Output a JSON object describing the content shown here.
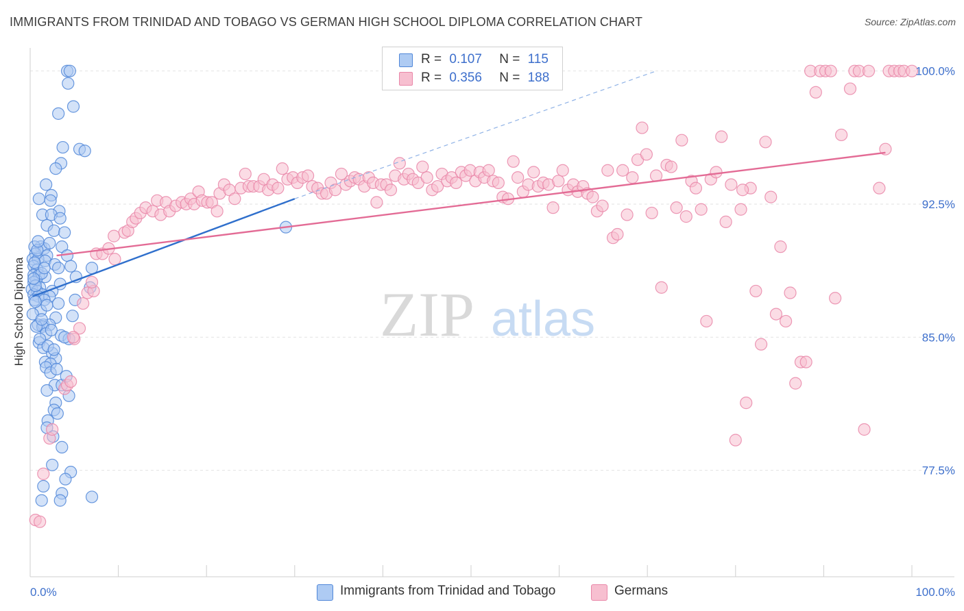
{
  "title": "IMMIGRANTS FROM TRINIDAD AND TOBAGO VS GERMAN HIGH SCHOOL DIPLOMA CORRELATION CHART",
  "source": "Source: ZipAtlas.com",
  "watermark": {
    "zip": "ZIP",
    "atlas": "atlas"
  },
  "legend": {
    "r_label": "R =",
    "n_label": "N =",
    "rows": [
      {
        "r": "0.107",
        "n": "115"
      },
      {
        "r": "0.356",
        "n": "188"
      }
    ]
  },
  "colors": {
    "blue_fill": "#aecbf3",
    "blue_stroke": "#4f86d8",
    "blue_line": "#2f6fcc",
    "pink_fill": "#f7bfd0",
    "pink_stroke": "#e986a8",
    "pink_line": "#e36b95",
    "grid": "#e2e2e2",
    "tick_text": "#3d6fcc"
  },
  "chart_data": {
    "type": "scatter",
    "title": "IMMIGRANTS FROM TRINIDAD AND TOBAGO VS GERMAN HIGH SCHOOL DIPLOMA CORRELATION CHART",
    "xlabel": "",
    "ylabel": "High School Diploma",
    "xlim": [
      0,
      100
    ],
    "ylim": [
      71.5,
      101.3
    ],
    "x_ticks": [
      "0.0%",
      "100.0%"
    ],
    "y_ticks": [
      {
        "value": 77.5,
        "label": "77.5%"
      },
      {
        "value": 85.0,
        "label": "85.0%"
      },
      {
        "value": 92.5,
        "label": "92.5%"
      },
      {
        "value": 100.0,
        "label": "100.0%"
      }
    ],
    "grid": true,
    "legend_position": "top-center",
    "series": [
      {
        "name": "Immigrants from Trinidad and Tobago",
        "color": "#4f86d8",
        "r": 0.107,
        "n": 115,
        "trend": {
          "x": [
            0.3,
            30.0
          ],
          "y": [
            87.3,
            92.8
          ]
        },
        "trend_extension": {
          "x": [
            30.0,
            71.0
          ],
          "y": [
            92.8,
            100.0
          ]
        },
        "points": [
          [
            4.2,
            100.0
          ],
          [
            4.5,
            100.0
          ],
          [
            4.3,
            99.3
          ],
          [
            4.9,
            98.0
          ],
          [
            3.2,
            97.6
          ],
          [
            3.7,
            95.7
          ],
          [
            5.6,
            95.6
          ],
          [
            6.2,
            95.5
          ],
          [
            3.5,
            94.8
          ],
          [
            2.9,
            94.5
          ],
          [
            1.8,
            93.6
          ],
          [
            2.4,
            93.0
          ],
          [
            1.0,
            92.8
          ],
          [
            2.3,
            92.7
          ],
          [
            3.3,
            92.1
          ],
          [
            1.4,
            91.9
          ],
          [
            2.4,
            91.9
          ],
          [
            3.4,
            91.7
          ],
          [
            1.9,
            91.3
          ],
          [
            2.7,
            91.0
          ],
          [
            3.9,
            90.9
          ],
          [
            1.2,
            90.1
          ],
          [
            3.6,
            90.1
          ],
          [
            0.5,
            90.1
          ],
          [
            1.6,
            90.0
          ],
          [
            0.6,
            89.7
          ],
          [
            1.9,
            89.6
          ],
          [
            4.2,
            89.6
          ],
          [
            0.3,
            89.4
          ],
          [
            0.9,
            89.4
          ],
          [
            1.7,
            89.3
          ],
          [
            2.8,
            89.1
          ],
          [
            0.4,
            89.0
          ],
          [
            4.6,
            89.0
          ],
          [
            3.2,
            88.9
          ],
          [
            0.8,
            88.8
          ],
          [
            7.0,
            88.9
          ],
          [
            0.4,
            88.5
          ],
          [
            1.0,
            88.5
          ],
          [
            1.7,
            88.4
          ],
          [
            5.2,
            88.4
          ],
          [
            0.7,
            88.2
          ],
          [
            0.4,
            88.1
          ],
          [
            3.4,
            88.0
          ],
          [
            1.1,
            87.8
          ],
          [
            0.2,
            87.7
          ],
          [
            0.8,
            87.6
          ],
          [
            2.5,
            87.6
          ],
          [
            6.8,
            87.8
          ],
          [
            0.4,
            87.4
          ],
          [
            1.4,
            87.4
          ],
          [
            0.9,
            87.3
          ],
          [
            2.2,
            87.3
          ],
          [
            0.5,
            87.1
          ],
          [
            1.6,
            87.1
          ],
          [
            3.2,
            86.9
          ],
          [
            1.2,
            86.5
          ],
          [
            2.9,
            86.1
          ],
          [
            4.8,
            86.2
          ],
          [
            0.9,
            85.7
          ],
          [
            1.5,
            85.7
          ],
          [
            2.2,
            85.7
          ],
          [
            1.4,
            85.6
          ],
          [
            0.7,
            85.6
          ],
          [
            1.8,
            85.2
          ],
          [
            3.5,
            85.1
          ],
          [
            4.4,
            84.9
          ],
          [
            1.0,
            84.7
          ],
          [
            1.5,
            84.4
          ],
          [
            2.5,
            84.1
          ],
          [
            2.9,
            83.8
          ],
          [
            1.7,
            83.6
          ],
          [
            2.3,
            83.5
          ],
          [
            1.8,
            83.3
          ],
          [
            2.3,
            83.0
          ],
          [
            2.8,
            82.3
          ],
          [
            3.6,
            82.3
          ],
          [
            4.4,
            81.7
          ],
          [
            2.9,
            81.3
          ],
          [
            2.7,
            80.9
          ],
          [
            2.0,
            80.3
          ],
          [
            1.9,
            79.9
          ],
          [
            3.6,
            78.8
          ],
          [
            2.5,
            77.8
          ],
          [
            4.6,
            77.4
          ],
          [
            3.6,
            76.2
          ],
          [
            1.3,
            75.8
          ],
          [
            3.4,
            75.8
          ],
          [
            7.0,
            76.0
          ],
          [
            0.5,
            89.2
          ],
          [
            1.3,
            88.6
          ],
          [
            0.6,
            87.9
          ],
          [
            1.9,
            86.8
          ],
          [
            0.3,
            86.3
          ],
          [
            2.4,
            85.4
          ],
          [
            29.0,
            91.2
          ],
          [
            5.1,
            87.1
          ],
          [
            0.8,
            89.9
          ],
          [
            1.6,
            88.9
          ],
          [
            0.4,
            88.3
          ],
          [
            0.6,
            87.0
          ],
          [
            1.3,
            86.0
          ],
          [
            3.9,
            85.0
          ],
          [
            1.1,
            84.9
          ],
          [
            2.0,
            84.5
          ],
          [
            2.7,
            84.3
          ],
          [
            3.0,
            83.2
          ],
          [
            4.1,
            82.8
          ],
          [
            1.9,
            82.0
          ],
          [
            3.1,
            80.7
          ],
          [
            2.6,
            79.4
          ],
          [
            4.0,
            77.0
          ],
          [
            1.5,
            76.6
          ],
          [
            0.9,
            90.4
          ],
          [
            2.2,
            90.3
          ]
        ]
      },
      {
        "name": "Germans",
        "color": "#e986a8",
        "r": 0.356,
        "n": 188,
        "trend": {
          "x": [
            3.0,
            97.0
          ],
          "y": [
            89.6,
            95.4
          ]
        },
        "points": [
          [
            0.6,
            74.7
          ],
          [
            1.1,
            74.6
          ],
          [
            1.5,
            77.3
          ],
          [
            2.2,
            79.3
          ],
          [
            2.5,
            79.8
          ],
          [
            3.9,
            82.1
          ],
          [
            4.2,
            82.3
          ],
          [
            4.6,
            82.5
          ],
          [
            5.0,
            84.9
          ],
          [
            5.6,
            85.5
          ],
          [
            4.9,
            85.0
          ],
          [
            6.0,
            86.9
          ],
          [
            6.5,
            87.5
          ],
          [
            7.2,
            87.6
          ],
          [
            7.0,
            88.1
          ],
          [
            7.5,
            89.7
          ],
          [
            8.2,
            89.7
          ],
          [
            8.9,
            90.0
          ],
          [
            9.6,
            89.4
          ],
          [
            9.5,
            90.7
          ],
          [
            10.7,
            90.9
          ],
          [
            11.1,
            91.0
          ],
          [
            11.6,
            91.5
          ],
          [
            12.0,
            91.7
          ],
          [
            12.5,
            92.0
          ],
          [
            13.1,
            92.3
          ],
          [
            13.9,
            92.1
          ],
          [
            14.4,
            92.7
          ],
          [
            14.8,
            91.9
          ],
          [
            15.4,
            92.6
          ],
          [
            15.8,
            92.1
          ],
          [
            16.5,
            92.4
          ],
          [
            17.2,
            92.6
          ],
          [
            17.7,
            92.5
          ],
          [
            18.2,
            92.8
          ],
          [
            18.6,
            92.5
          ],
          [
            19.1,
            93.2
          ],
          [
            19.5,
            92.7
          ],
          [
            20.1,
            92.6
          ],
          [
            20.6,
            92.6
          ],
          [
            21.2,
            92.1
          ],
          [
            21.5,
            93.1
          ],
          [
            22.0,
            93.6
          ],
          [
            22.6,
            93.3
          ],
          [
            23.2,
            92.8
          ],
          [
            23.9,
            93.4
          ],
          [
            24.4,
            94.2
          ],
          [
            24.8,
            93.5
          ],
          [
            25.3,
            93.5
          ],
          [
            26.0,
            93.5
          ],
          [
            26.5,
            93.9
          ],
          [
            27.0,
            93.3
          ],
          [
            27.5,
            93.6
          ],
          [
            28.1,
            93.4
          ],
          [
            28.6,
            94.5
          ],
          [
            29.2,
            93.9
          ],
          [
            29.8,
            94.0
          ],
          [
            30.3,
            93.7
          ],
          [
            30.9,
            94.0
          ],
          [
            31.5,
            94.1
          ],
          [
            32.0,
            93.5
          ],
          [
            32.6,
            93.4
          ],
          [
            33.1,
            93.1
          ],
          [
            33.6,
            93.1
          ],
          [
            34.1,
            93.7
          ],
          [
            34.6,
            93.3
          ],
          [
            35.3,
            94.2
          ],
          [
            35.8,
            93.6
          ],
          [
            36.3,
            93.8
          ],
          [
            36.8,
            94.0
          ],
          [
            37.3,
            93.9
          ],
          [
            37.9,
            93.5
          ],
          [
            38.4,
            94.0
          ],
          [
            38.9,
            93.7
          ],
          [
            39.3,
            92.6
          ],
          [
            39.8,
            93.6
          ],
          [
            40.4,
            93.6
          ],
          [
            40.9,
            93.3
          ],
          [
            41.4,
            94.1
          ],
          [
            41.9,
            94.8
          ],
          [
            42.4,
            93.9
          ],
          [
            42.9,
            94.2
          ],
          [
            43.4,
            93.9
          ],
          [
            44.0,
            93.7
          ],
          [
            44.5,
            94.6
          ],
          [
            45.0,
            94.0
          ],
          [
            45.6,
            93.3
          ],
          [
            46.2,
            93.5
          ],
          [
            46.7,
            94.2
          ],
          [
            47.3,
            93.8
          ],
          [
            47.8,
            94.0
          ],
          [
            48.3,
            93.7
          ],
          [
            48.9,
            94.3
          ],
          [
            49.4,
            94.1
          ],
          [
            49.9,
            94.4
          ],
          [
            50.5,
            93.8
          ],
          [
            51.0,
            94.3
          ],
          [
            51.5,
            94.0
          ],
          [
            52.0,
            94.4
          ],
          [
            52.5,
            93.8
          ],
          [
            53.1,
            93.7
          ],
          [
            53.6,
            92.9
          ],
          [
            54.2,
            92.8
          ],
          [
            54.8,
            94.9
          ],
          [
            55.3,
            94.0
          ],
          [
            55.9,
            93.2
          ],
          [
            56.5,
            93.6
          ],
          [
            57.1,
            94.3
          ],
          [
            57.6,
            93.5
          ],
          [
            58.2,
            93.7
          ],
          [
            58.8,
            93.6
          ],
          [
            59.3,
            92.3
          ],
          [
            59.9,
            93.8
          ],
          [
            60.4,
            94.4
          ],
          [
            61.0,
            93.3
          ],
          [
            61.6,
            93.6
          ],
          [
            62.1,
            93.2
          ],
          [
            62.7,
            93.5
          ],
          [
            63.2,
            93.1
          ],
          [
            63.8,
            92.9
          ],
          [
            64.3,
            92.1
          ],
          [
            64.9,
            92.4
          ],
          [
            65.5,
            94.4
          ],
          [
            66.1,
            90.6
          ],
          [
            66.6,
            90.8
          ],
          [
            67.2,
            94.4
          ],
          [
            67.7,
            91.9
          ],
          [
            68.3,
            94.0
          ],
          [
            68.9,
            95.0
          ],
          [
            69.4,
            96.8
          ],
          [
            69.9,
            95.3
          ],
          [
            70.5,
            92.0
          ],
          [
            71.0,
            94.1
          ],
          [
            71.6,
            87.8
          ],
          [
            72.2,
            94.7
          ],
          [
            72.7,
            94.6
          ],
          [
            73.3,
            92.3
          ],
          [
            73.9,
            96.1
          ],
          [
            74.4,
            91.8
          ],
          [
            75.0,
            93.8
          ],
          [
            75.5,
            93.4
          ],
          [
            76.1,
            92.2
          ],
          [
            76.7,
            85.9
          ],
          [
            77.2,
            93.9
          ],
          [
            77.8,
            94.3
          ],
          [
            78.4,
            96.3
          ],
          [
            78.9,
            91.5
          ],
          [
            79.5,
            93.6
          ],
          [
            80.0,
            79.2
          ],
          [
            80.6,
            92.2
          ],
          [
            81.2,
            81.3
          ],
          [
            81.7,
            93.4
          ],
          [
            82.3,
            87.6
          ],
          [
            82.9,
            84.6
          ],
          [
            83.4,
            96.0
          ],
          [
            84.0,
            92.9
          ],
          [
            84.6,
            86.3
          ],
          [
            85.1,
            90.1
          ],
          [
            85.7,
            85.9
          ],
          [
            86.2,
            87.5
          ],
          [
            86.8,
            82.4
          ],
          [
            87.4,
            83.6
          ],
          [
            88.0,
            83.6
          ],
          [
            88.5,
            100.0
          ],
          [
            89.1,
            98.8
          ],
          [
            89.6,
            100.0
          ],
          [
            90.2,
            100.0
          ],
          [
            90.8,
            100.0
          ],
          [
            91.3,
            87.2
          ],
          [
            92.0,
            96.4
          ],
          [
            93.0,
            99.0
          ],
          [
            93.5,
            100.0
          ],
          [
            94.0,
            100.0
          ],
          [
            94.6,
            79.8
          ],
          [
            95.1,
            100.0
          ],
          [
            96.3,
            93.4
          ],
          [
            97.4,
            100.0
          ],
          [
            98.0,
            100.0
          ],
          [
            98.6,
            100.0
          ],
          [
            99.1,
            100.0
          ],
          [
            100.0,
            100.0
          ],
          [
            97.0,
            95.6
          ],
          [
            80.8,
            93.3
          ]
        ]
      }
    ]
  }
}
